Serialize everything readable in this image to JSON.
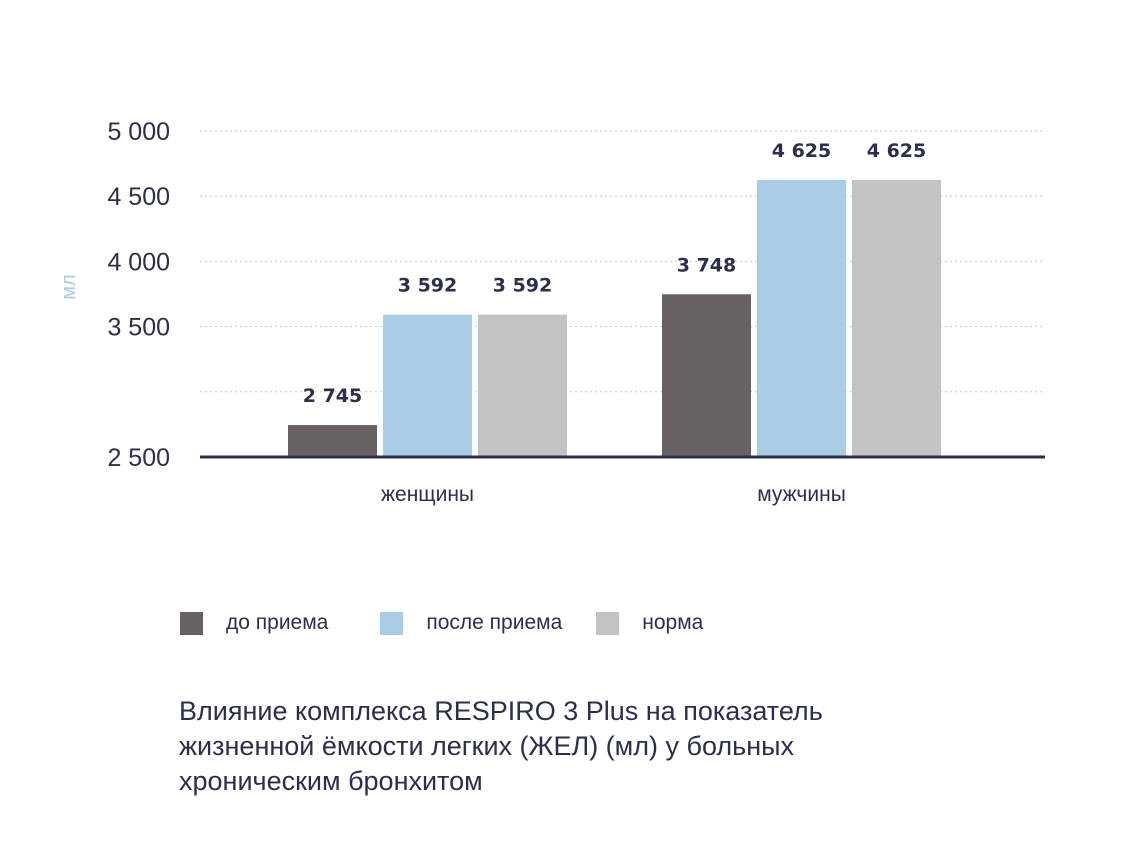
{
  "chart_data": {
    "type": "bar",
    "categories": [
      "женщины",
      "мужчины"
    ],
    "series": [
      {
        "name": "до приема",
        "values": [
          2745,
          3748
        ],
        "labels": [
          "2 745",
          "3 748"
        ],
        "color": "#676261"
      },
      {
        "name": "после приема",
        "values": [
          3592,
          4625
        ],
        "labels": [
          "3 592",
          "4 625"
        ],
        "color": "#aacde6"
      },
      {
        "name": "норма",
        "values": [
          3592,
          4625
        ],
        "labels": [
          "3 592",
          "4 625"
        ],
        "color": "#c3c3c3"
      }
    ],
    "ylabel": "мл",
    "yticks": [
      {
        "value": 2500,
        "label": "2 500"
      },
      {
        "value": 3500,
        "label": "3 500"
      },
      {
        "value": 4000,
        "label": "4 000"
      },
      {
        "value": 4500,
        "label": "4 500"
      },
      {
        "value": 5000,
        "label": "5 000"
      }
    ],
    "grid": true,
    "legend_position": "bottom-left",
    "axis_color": "#2b2f4a",
    "grid_color": "#c9c9c9"
  },
  "caption": "Влияние комплекса RESPIRO 3 Plus на показатель жизненной ёмкости легких (ЖЕЛ) (мл) у больных хроническим бронхитом"
}
